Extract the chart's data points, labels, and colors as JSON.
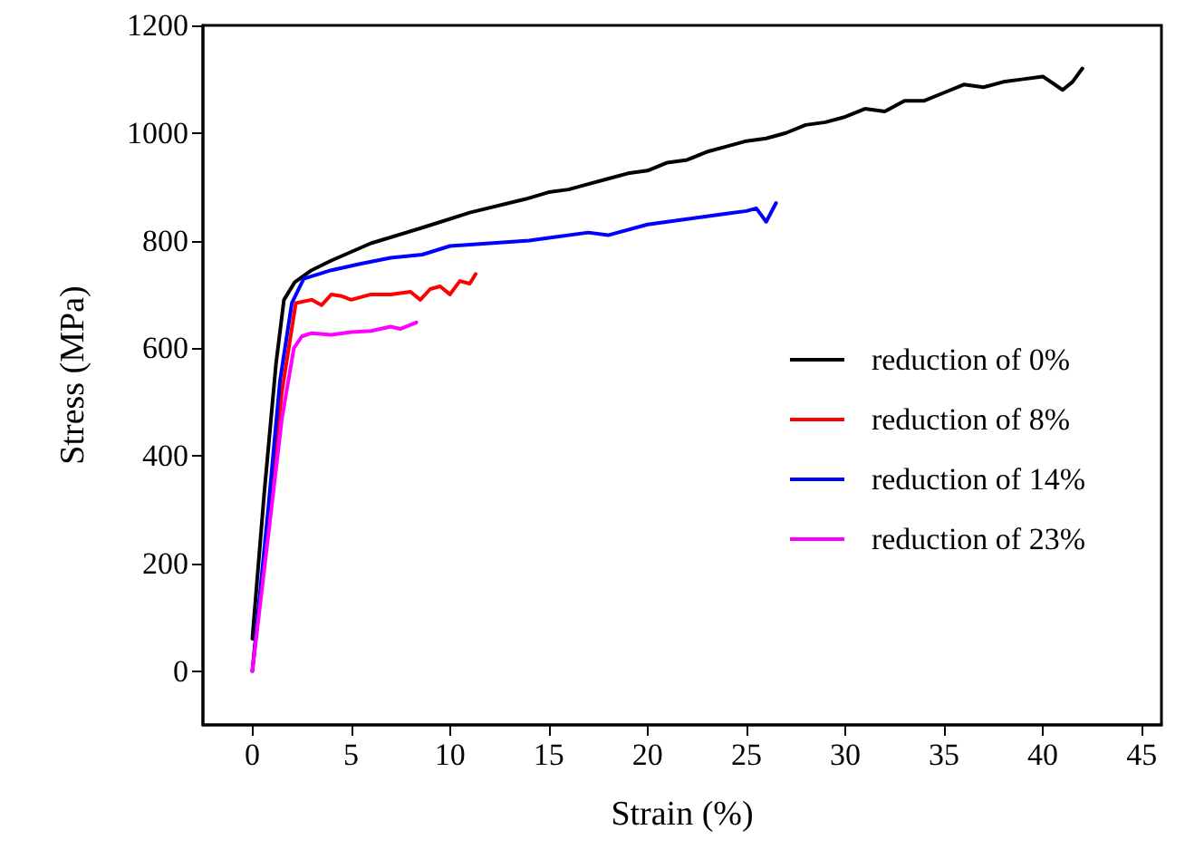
{
  "chart_data": {
    "type": "line",
    "xlabel": "Strain (%)",
    "ylabel": "Stress (MPa)",
    "xlim": [
      -2.5,
      46
    ],
    "xticks": [
      0,
      5,
      10,
      15,
      20,
      25,
      30,
      35,
      40,
      45
    ],
    "ylim": [
      -100,
      1200
    ],
    "yticks": [
      0,
      200,
      400,
      600,
      800,
      1000,
      1200
    ],
    "grid": false,
    "legend": "right",
    "marker": "none",
    "line_style": "solid",
    "series": [
      {
        "name": "reduction of 0%",
        "color": "#000000",
        "x": [
          0,
          0.6,
          1.2,
          1.6,
          2.15,
          3,
          4,
          6,
          8.6,
          11,
          13.8,
          15,
          16,
          17,
          18,
          19,
          20,
          21,
          22,
          23,
          24,
          25,
          26,
          27,
          28,
          29,
          30,
          31,
          32,
          33,
          34,
          35,
          36,
          37,
          38,
          39,
          40,
          41,
          41.5,
          42
        ],
        "values": [
          60,
          330,
          572,
          690,
          723,
          745,
          763,
          795,
          824,
          852,
          877,
          890,
          895,
          905,
          915,
          925,
          930,
          945,
          950,
          965,
          975,
          985,
          990,
          1000,
          1015,
          1020,
          1030,
          1045,
          1040,
          1060,
          1060,
          1075,
          1090,
          1085,
          1095,
          1100,
          1105,
          1080,
          1095,
          1120
        ]
      },
      {
        "name": "reduction of 8%",
        "color": "#ff0000",
        "x": [
          0,
          1.5,
          2.2,
          3,
          3.5,
          4,
          4.5,
          5,
          6,
          7,
          8,
          8.5,
          9,
          9.5,
          10,
          10.5,
          11,
          11.3
        ],
        "values": [
          0,
          520,
          684,
          690,
          680,
          700,
          697,
          690,
          700,
          700,
          705,
          690,
          710,
          715,
          700,
          725,
          720,
          738
        ]
      },
      {
        "name": "reduction of 14%",
        "color": "#0000ff",
        "x": [
          0,
          0.8,
          1.4,
          2,
          2.6,
          4,
          5.5,
          7,
          8.6,
          10,
          12,
          14,
          15,
          17,
          18,
          20,
          21,
          22,
          23,
          24,
          25,
          25.5,
          26,
          26.5
        ],
        "values": [
          0,
          300,
          540,
          684,
          729,
          745,
          757,
          768,
          774,
          790,
          795,
          800,
          805,
          815,
          810,
          830,
          835,
          840,
          845,
          850,
          855,
          860,
          835,
          870
        ]
      },
      {
        "name": "reduction of 23%",
        "color": "#ff00ff",
        "x": [
          0,
          0.8,
          1.5,
          2.1,
          2.5,
          3,
          4,
          5,
          6,
          7,
          7.5,
          8.3
        ],
        "values": [
          0,
          250,
          470,
          600,
          622,
          628,
          625,
          630,
          632,
          640,
          636,
          648
        ]
      }
    ]
  }
}
